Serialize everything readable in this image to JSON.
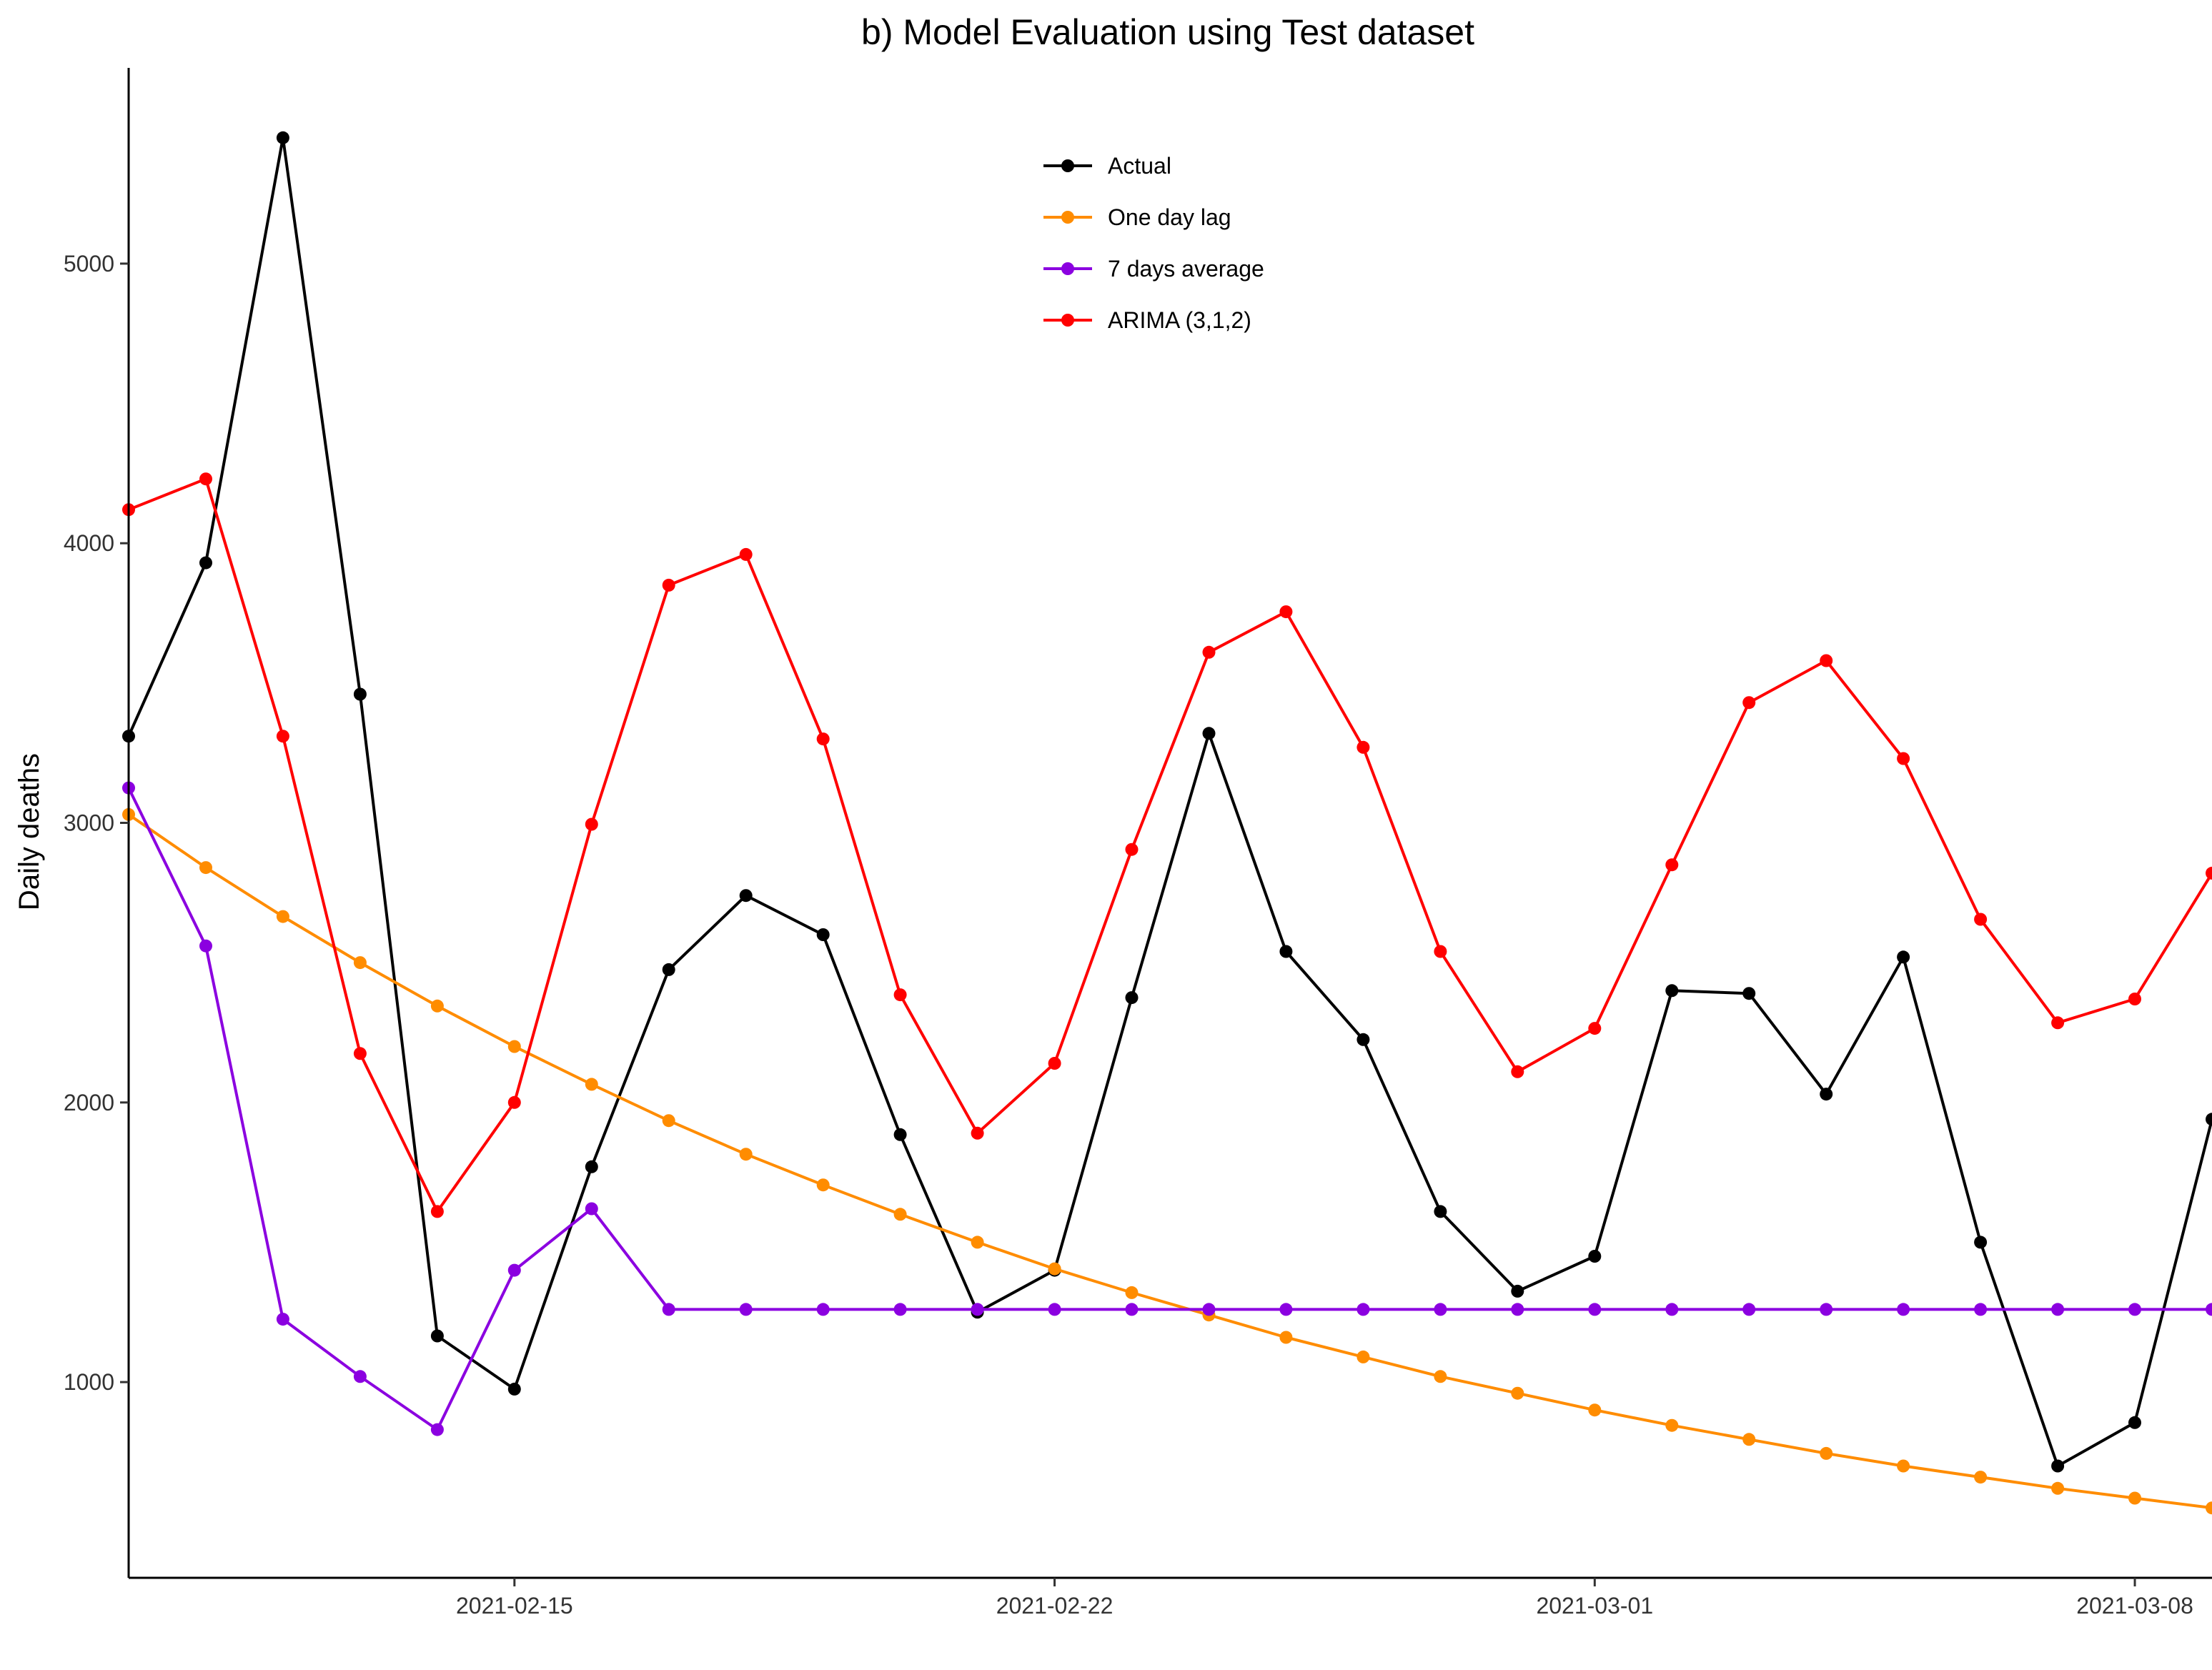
{
  "chart_data": {
    "type": "line",
    "title": "b) Model Evaluation using Test dataset",
    "xlabel": "",
    "ylabel": "Daily deaths",
    "x": [
      "2021-02-10",
      "2021-02-11",
      "2021-02-12",
      "2021-02-13",
      "2021-02-14",
      "2021-02-15",
      "2021-02-16",
      "2021-02-17",
      "2021-02-18",
      "2021-02-19",
      "2021-02-20",
      "2021-02-21",
      "2021-02-22",
      "2021-02-23",
      "2021-02-24",
      "2021-02-25",
      "2021-02-26",
      "2021-02-27",
      "2021-02-28",
      "2021-03-01",
      "2021-03-02",
      "2021-03-03",
      "2021-03-04",
      "2021-03-05",
      "2021-03-06",
      "2021-03-07",
      "2021-03-08",
      "2021-03-09"
    ],
    "xlim": [
      "2021-02-10",
      "2021-03-09"
    ],
    "x_ticks": [
      "2021-02-15",
      "2021-02-22",
      "2021-03-01",
      "2021-03-08"
    ],
    "ylim": [
      300,
      5700
    ],
    "y_ticks": [
      1000,
      2000,
      3000,
      4000,
      5000
    ],
    "grid": false,
    "legend_position": "top-center",
    "series": [
      {
        "name": "Actual",
        "color": "#000000",
        "values": [
          3310,
          3930,
          5450,
          3460,
          1165,
          975,
          1770,
          2475,
          2740,
          2600,
          1885,
          1250,
          1400,
          2375,
          3320,
          2540,
          2225,
          1610,
          1325,
          1450,
          2400,
          2390,
          2030,
          2520,
          1500,
          700,
          855,
          1940
        ]
      },
      {
        "name": "One day lag",
        "color": "#FF8C00",
        "values": [
          3030,
          2840,
          2665,
          2500,
          2345,
          2200,
          2065,
          1935,
          1815,
          1705,
          1600,
          1500,
          1405,
          1320,
          1240,
          1160,
          1090,
          1020,
          960,
          900,
          845,
          795,
          745,
          700,
          660,
          620,
          585,
          550
        ]
      },
      {
        "name": "7 days average",
        "color": "#8B00E0",
        "values": [
          3125,
          2560,
          1225,
          1020,
          830,
          1400,
          1620,
          1260,
          1260,
          1260,
          1260,
          1260,
          1260,
          1260,
          1260,
          1260,
          1260,
          1260,
          1260,
          1260,
          1260,
          1260,
          1260,
          1260,
          1260,
          1260,
          1260,
          1260
        ]
      },
      {
        "name": "ARIMA (3,1,2)",
        "color": "#FF0000",
        "values": [
          4120,
          4230,
          3310,
          2175,
          1610,
          2000,
          2995,
          3850,
          3960,
          3300,
          2385,
          1890,
          2140,
          2905,
          3610,
          3755,
          3270,
          2540,
          2110,
          2265,
          2850,
          3430,
          3580,
          3230,
          2655,
          2285,
          2370,
          2820
        ]
      }
    ]
  }
}
